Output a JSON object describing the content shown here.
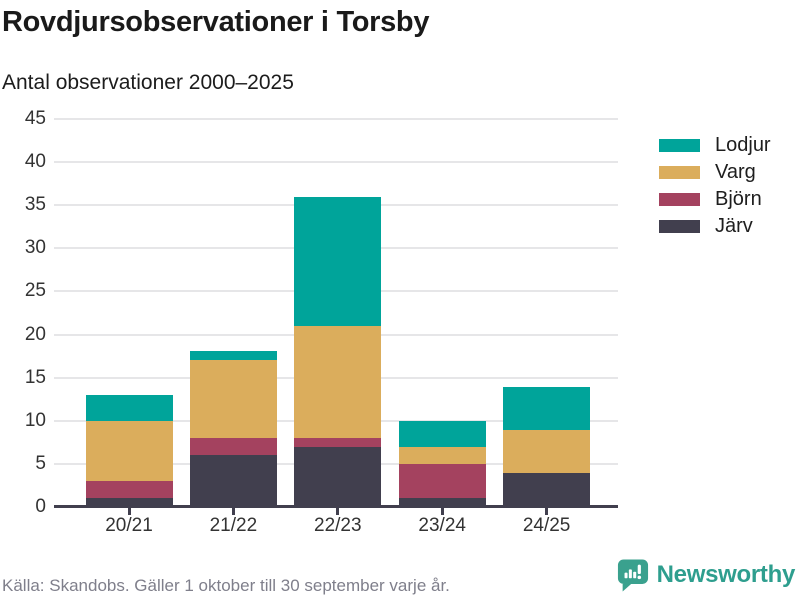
{
  "header": {
    "title": "Rovdjursobservationer i Torsby",
    "subtitle": "Antal observationer 2000–2025"
  },
  "chart_data": {
    "type": "bar",
    "stacked": true,
    "title": "Rovdjursobservationer i Torsby",
    "subtitle": "Antal observationer 2000–2025",
    "categories": [
      "20/21",
      "21/22",
      "22/23",
      "23/24",
      "24/25"
    ],
    "series": [
      {
        "name": "Järv",
        "color": "#413F4E",
        "values": [
          1,
          6,
          7,
          1,
          4
        ]
      },
      {
        "name": "Björn",
        "color": "#A4425F",
        "values": [
          2,
          2,
          1,
          4,
          0
        ]
      },
      {
        "name": "Varg",
        "color": "#DBAD5C",
        "values": [
          7,
          9,
          13,
          2,
          5
        ]
      },
      {
        "name": "Lodjur",
        "color": "#00A49A",
        "values": [
          3,
          1,
          15,
          3,
          5
        ]
      }
    ],
    "legend_order_top_to_bottom": [
      "Lodjur",
      "Varg",
      "Björn",
      "Järv"
    ],
    "xlabel": "",
    "ylabel": "",
    "ylim": [
      0,
      45
    ],
    "ytick_step": 5,
    "grid": true,
    "legend_position": "right",
    "axis_color": "#413F4E",
    "grid_color": "#E6E6E8",
    "tick_label_color": "#333333"
  },
  "footer": {
    "source": "Källa: Skandobs. Gäller 1 oktober till 30 september varje år.",
    "brand_name": "Newsworthy",
    "brand_color": "#2E9E8E",
    "logo_icon": "speech-bubble-bar-chart-icon"
  }
}
